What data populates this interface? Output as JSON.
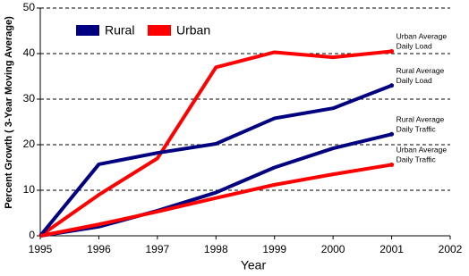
{
  "chart_data": {
    "type": "line",
    "x_label": "Year",
    "y_label": "Percent Growth ( 3-Year Moving Average)",
    "x": [
      1995,
      1996,
      1997,
      1998,
      1999,
      2000,
      2001
    ],
    "legend": [
      {
        "name": "Rural",
        "color": "#000080"
      },
      {
        "name": "Urban",
        "color": "#ff0000"
      }
    ],
    "series": [
      {
        "label": [
          "Urban Average",
          "Daily Load"
        ],
        "color": "#ff0000",
        "values": [
          0,
          9,
          17,
          37,
          40.3,
          39.2,
          40.5
        ]
      },
      {
        "label": [
          "Rural Average",
          "Daily Load"
        ],
        "color": "#000080",
        "values": [
          0,
          15.7,
          18.2,
          20.2,
          25.8,
          28,
          33
        ]
      },
      {
        "label": [
          "Rural Average",
          "Daily Traffic"
        ],
        "color": "#000080",
        "values": [
          0,
          2,
          5.5,
          9.5,
          15,
          19.2,
          22.3
        ]
      },
      {
        "label": [
          "Urban Average",
          "Daily Traffic"
        ],
        "color": "#ff0000",
        "values": [
          0,
          2.5,
          5.3,
          8.3,
          11.2,
          13.5,
          15.6
        ]
      }
    ],
    "xlim": [
      1995,
      2002
    ],
    "xticks": [
      1995,
      1996,
      1997,
      1998,
      1999,
      2000,
      2001,
      2002
    ],
    "ylim": [
      0,
      50
    ],
    "yticks": [
      0,
      10,
      20,
      30,
      40,
      50
    ],
    "grid": true
  }
}
